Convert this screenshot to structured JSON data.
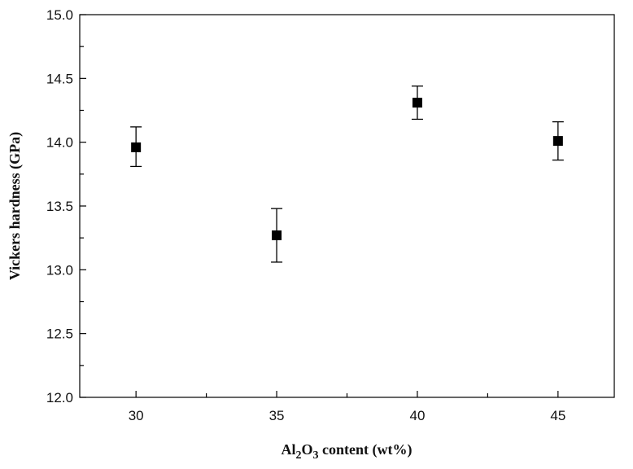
{
  "chart_data": {
    "type": "scatter",
    "title": "",
    "xlabel": {
      "prefix": "Al",
      "sub1": "2",
      "mid": "O",
      "sub2": "3",
      "suffix": " content (wt%)"
    },
    "ylabel": "Vickers hardness (GPa)",
    "xlim": [
      28,
      47
    ],
    "ylim": [
      12.0,
      15.0
    ],
    "x_ticks": [
      30,
      35,
      40,
      45
    ],
    "x_tick_labels": [
      "30",
      "35",
      "40",
      "45"
    ],
    "y_ticks": [
      12.0,
      12.5,
      13.0,
      13.5,
      14.0,
      14.5,
      15.0
    ],
    "y_tick_labels": [
      "12.0",
      "12.5",
      "13.0",
      "13.5",
      "14.0",
      "14.5",
      "15.0"
    ],
    "grid": false,
    "points": [
      {
        "x": 30,
        "y": 13.96,
        "err_low": 13.81,
        "err_high": 14.12
      },
      {
        "x": 35,
        "y": 13.27,
        "err_low": 13.06,
        "err_high": 13.48
      },
      {
        "x": 40,
        "y": 14.31,
        "err_low": 14.18,
        "err_high": 14.44
      },
      {
        "x": 45,
        "y": 14.01,
        "err_low": 13.86,
        "err_high": 14.16
      }
    ],
    "marker": "square",
    "color": "#000000"
  }
}
